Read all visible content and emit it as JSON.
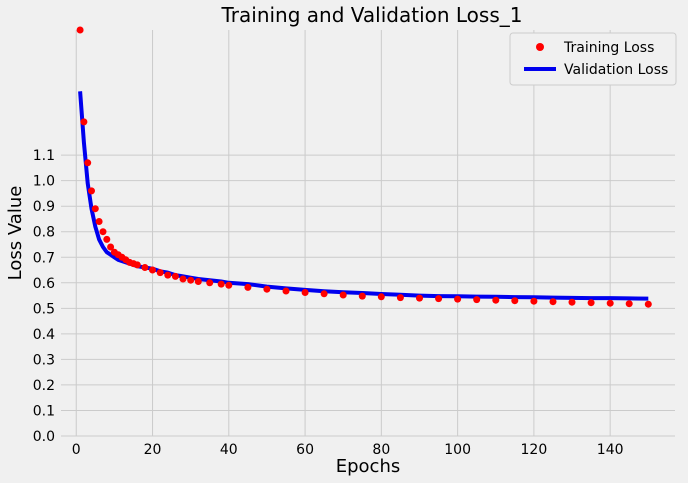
{
  "chart_data": {
    "type": "line",
    "title": "Training and Validation Loss_1",
    "xlabel": "Epochs",
    "ylabel": "Loss Value",
    "xlim": [
      -4,
      157
    ],
    "ylim": [
      0.0,
      1.59
    ],
    "xticks": [
      0,
      20,
      40,
      60,
      80,
      100,
      120,
      140
    ],
    "xtick_labels": [
      "0",
      "20",
      "40",
      "60",
      "80",
      "100",
      "120",
      "140"
    ],
    "yticks": [
      0.0,
      0.1,
      0.2,
      0.3,
      0.4,
      0.5,
      0.6,
      0.7,
      0.8,
      0.9,
      1.0,
      1.1
    ],
    "ytick_labels": [
      "0.0",
      "0.1",
      "0.2",
      "0.3",
      "0.4",
      "0.5",
      "0.6",
      "0.7",
      "0.8",
      "0.9",
      "1.0",
      "1.1"
    ],
    "grid": true,
    "legend_position": "top-right",
    "series": [
      {
        "name": "Training Loss",
        "style": "markers",
        "color": "#ff0000",
        "x": [
          1,
          2,
          3,
          4,
          5,
          6,
          7,
          8,
          9,
          10,
          11,
          12,
          13,
          14,
          15,
          16,
          18,
          20,
          22,
          24,
          26,
          28,
          30,
          32,
          35,
          38,
          40,
          45,
          50,
          55,
          60,
          65,
          70,
          75,
          80,
          85,
          90,
          95,
          100,
          105,
          110,
          115,
          120,
          125,
          130,
          135,
          140,
          145,
          150
        ],
        "y": [
          1.59,
          1.23,
          1.07,
          0.96,
          0.89,
          0.84,
          0.8,
          0.77,
          0.74,
          0.72,
          0.71,
          0.7,
          0.69,
          0.68,
          0.675,
          0.67,
          0.66,
          0.65,
          0.64,
          0.63,
          0.625,
          0.615,
          0.61,
          0.605,
          0.6,
          0.595,
          0.59,
          0.582,
          0.575,
          0.568,
          0.562,
          0.557,
          0.552,
          0.548,
          0.545,
          0.542,
          0.54,
          0.538,
          0.536,
          0.534,
          0.532,
          0.53,
          0.528,
          0.526,
          0.524,
          0.522,
          0.52,
          0.518,
          0.516
        ]
      },
      {
        "name": "Validation Loss",
        "style": "line",
        "color": "#0000ee",
        "x": [
          1,
          2,
          3,
          4,
          5,
          6,
          7,
          8,
          9,
          10,
          11,
          12,
          13,
          14,
          15,
          16,
          18,
          20,
          22,
          24,
          26,
          28,
          30,
          32,
          35,
          38,
          40,
          45,
          50,
          55,
          60,
          65,
          70,
          75,
          80,
          85,
          90,
          95,
          100,
          105,
          110,
          115,
          120,
          125,
          130,
          135,
          140,
          145,
          150
        ],
        "y": [
          1.35,
          1.15,
          0.99,
          0.89,
          0.82,
          0.77,
          0.74,
          0.72,
          0.71,
          0.7,
          0.69,
          0.685,
          0.68,
          0.675,
          0.67,
          0.665,
          0.66,
          0.655,
          0.645,
          0.64,
          0.63,
          0.625,
          0.62,
          0.615,
          0.61,
          0.605,
          0.6,
          0.595,
          0.585,
          0.578,
          0.572,
          0.567,
          0.563,
          0.56,
          0.556,
          0.553,
          0.55,
          0.548,
          0.547,
          0.546,
          0.545,
          0.544,
          0.543,
          0.542,
          0.541,
          0.54,
          0.54,
          0.539,
          0.538
        ]
      }
    ]
  }
}
